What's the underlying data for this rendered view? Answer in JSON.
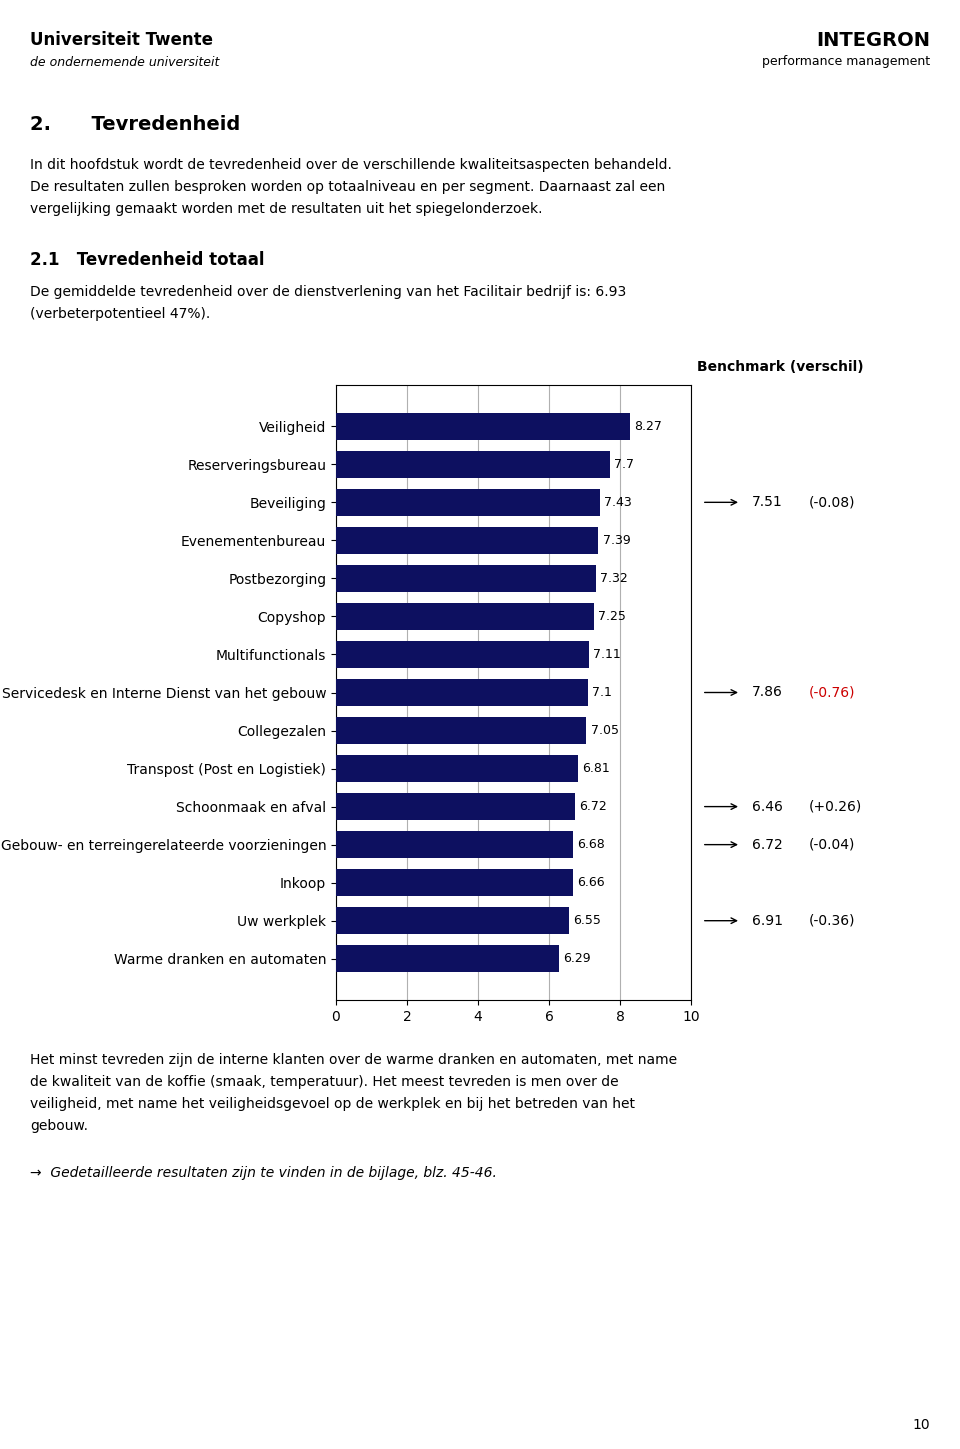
{
  "chart_data": {
    "type": "bar",
    "orientation": "horizontal",
    "title": "2.      Tevredenheid",
    "subtitle": "2.1   Tevredenheid totaal",
    "categories": [
      "Veiligheid",
      "Reserveringsbureau",
      "Beveiliging",
      "Evenementenbureau",
      "Postbezorging",
      "Copyshop",
      "Multifunctionals",
      "Servicedesk en Interne Dienst van het gebouw",
      "Collegezalen",
      "Transpost (Post en Logistiek)",
      "Schoonmaak en afval",
      "Gebouw- en terreingerelateerde voorzieningen",
      "Inkoop",
      "Uw werkplek",
      "Warme dranken en automaten"
    ],
    "values": [
      8.27,
      7.7,
      7.43,
      7.39,
      7.32,
      7.25,
      7.11,
      7.1,
      7.05,
      6.81,
      6.72,
      6.68,
      6.66,
      6.55,
      6.29
    ],
    "color": "#0d1060",
    "xlim": [
      0,
      10
    ],
    "xticks": [
      0,
      2,
      4,
      6,
      8,
      10
    ],
    "grid": true,
    "data_labels": true,
    "annotations": {
      "header_left": [
        "Universiteit Twente",
        "de ondernemende universiteit"
      ],
      "header_right": [
        "INTEGRON",
        "performance management"
      ],
      "intro": [
        "In dit hoofdstuk wordt de tevredenheid over de verschillende kwaliteitsaspecten behandeld.",
        "De resultaten zullen besproken worden op totaalniveau en per segment. Daarnaast zal een",
        "vergelijking gemaakt worden met de resultaten uit het spiegelonderzoek."
      ],
      "body": [
        "De gemiddelde tevredenheid over de dienstverlening van het Facilitair bedrijf is: 6.93",
        "(verbeterpotentieel 47%)."
      ],
      "benchmark_label": "Benchmark (verschil)",
      "benchmarks": [
        {
          "category": "Beveiliging",
          "texts": [
            "7.51",
            "(-0.08)"
          ],
          "color": "#000000"
        },
        {
          "category": "Servicedesk en Interne Dienst van het gebouw",
          "texts": [
            "7.86",
            "(-0.76)"
          ],
          "color": "#cc0000"
        },
        {
          "category": "Schoonmaak en afval",
          "texts": [
            "6.46",
            "(+0.26)"
          ],
          "color": "#000000"
        },
        {
          "category": "Gebouw- en terreingerelateerde voorzieningen",
          "texts": [
            "6.72",
            "(-0.04)"
          ],
          "color": "#000000"
        },
        {
          "category": "Uw werkplek",
          "texts": [
            "6.91",
            "(-0.36)"
          ],
          "color": "#000000"
        }
      ],
      "footer": [
        "Het minst tevreden zijn de interne klanten over de warme dranken en automaten, met name",
        "de kwaliteit van de koffie (smaak, temperatuur). Het meest tevreden is men over de",
        "veiligheid, met name het veiligheidsgevoel op de werkplek en bij het betreden van het",
        "gebouw."
      ],
      "footnote": "→  Gedetailleerde resultaten zijn te vinden in de bijlage, blz. 45-46.",
      "page_number": "10"
    }
  }
}
